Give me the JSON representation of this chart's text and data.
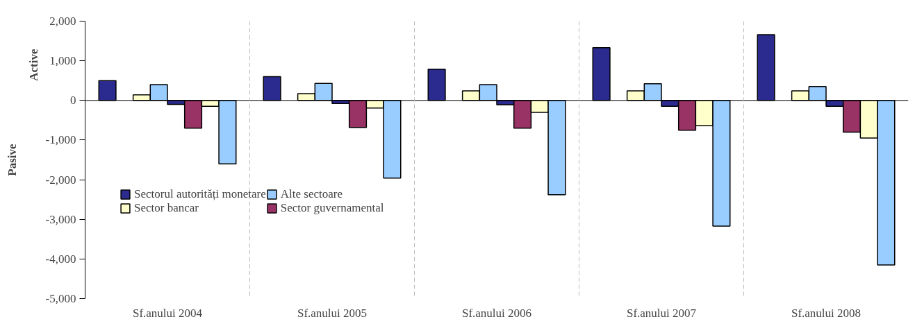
{
  "chart_data": {
    "type": "bar",
    "categories": [
      "Sf.anului 2004",
      "Sf.anului 2005",
      "Sf.anului 2006",
      "Sf.anului 2007",
      "Sf.anului 2008"
    ],
    "series": [
      {
        "name": "Sectorul autorități monetare",
        "color": "#2b2b8f",
        "values": [
          500,
          600,
          790,
          1330,
          1660
        ]
      },
      {
        "color": "#993366",
        "values": [
          null,
          null,
          null,
          null,
          null
        ]
      },
      {
        "name": "Sector bancar",
        "color": "#ffffcc",
        "values": [
          140,
          170,
          240,
          240,
          240
        ]
      },
      {
        "name": "Alte sectoare",
        "color": "#99ccff",
        "values": [
          400,
          430,
          400,
          420,
          350
        ]
      },
      {
        "color": "#2b2b8f",
        "values": [
          -100,
          -80,
          -110,
          -150,
          -150
        ]
      },
      {
        "name": "Sector guvernamental",
        "color": "#993366",
        "values": [
          -700,
          -680,
          -700,
          -750,
          -800
        ]
      },
      {
        "color": "#ffffcc",
        "values": [
          -150,
          -190,
          -300,
          -640,
          -950
        ]
      },
      {
        "color": "#99ccff",
        "values": [
          -1600,
          -1960,
          -2380,
          -3170,
          -4150
        ]
      }
    ],
    "ylim": [
      -5000,
      2000
    ],
    "yticks": [
      {
        "value": -5000,
        "label": "-5,000"
      },
      {
        "value": -4000,
        "label": "-4,000"
      },
      {
        "value": -3000,
        "label": "-3,000"
      },
      {
        "value": -2000,
        "label": "-2,000"
      },
      {
        "value": -1000,
        "label": "-1,000"
      },
      0,
      {
        "value": 1000,
        "label": "1,000"
      },
      {
        "value": 2000,
        "label": "2,000"
      }
    ],
    "annotations": [
      "Active",
      "Pasive"
    ],
    "grid": "x",
    "legend": "left"
  }
}
